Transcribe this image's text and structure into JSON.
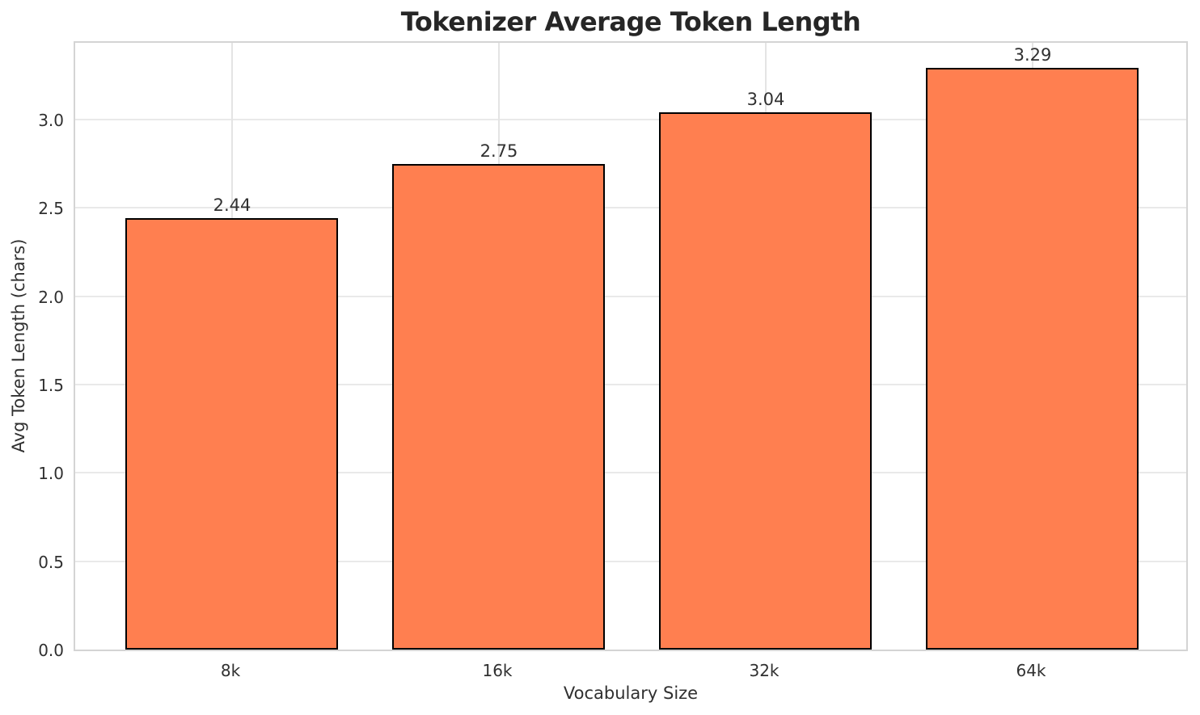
{
  "chart_data": {
    "type": "bar",
    "title": "Tokenizer Average Token Length",
    "xlabel": "Vocabulary Size",
    "ylabel": "Avg Token Length (chars)",
    "categories": [
      "8k",
      "16k",
      "32k",
      "64k"
    ],
    "values": [
      2.44,
      2.75,
      3.04,
      3.29
    ],
    "value_labels": [
      "2.44",
      "2.75",
      "3.04",
      "3.29"
    ],
    "yticks": [
      0.0,
      0.5,
      1.0,
      1.5,
      2.0,
      2.5,
      3.0
    ],
    "ytick_labels": [
      "0.0",
      "0.5",
      "1.0",
      "1.5",
      "2.0",
      "2.5",
      "3.0"
    ],
    "ylim": [
      0,
      3.452
    ],
    "grid": true,
    "legend_position": "none",
    "bar_color": "#FF7F50",
    "bar_edge_color": "#000000",
    "grid_color": "#e9e9e9",
    "spine_color": "#d4d4d4",
    "text_color": "#303030",
    "title_color": "#262626",
    "background_color": "#ffffff"
  }
}
